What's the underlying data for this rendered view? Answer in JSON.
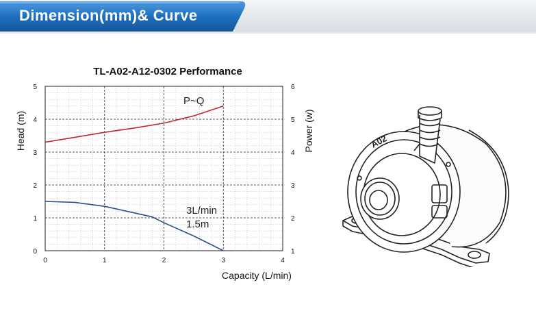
{
  "header": {
    "title": "Dimension(mm)& Curve"
  },
  "chart_data": {
    "type": "line",
    "title": "TL-A02-A12-0302 Performance",
    "xlabel": "Capacity (L/min)",
    "ylabel": "Head (m)",
    "y2label": "Power (w)",
    "xlim": [
      0,
      4
    ],
    "ylim": [
      0,
      5
    ],
    "y2lim": [
      1,
      6
    ],
    "xticks": [
      "0",
      "1",
      "2",
      "3",
      "4"
    ],
    "yticks": [
      "0",
      "1",
      "2",
      "3",
      "4",
      "5"
    ],
    "y2ticks": [
      "1",
      "2",
      "3",
      "4",
      "5",
      "6"
    ],
    "grid": true,
    "series": [
      {
        "name": "",
        "axis": "left",
        "color": "#2a4f8c",
        "x": [
          0,
          0.5,
          1.0,
          1.5,
          1.8,
          2.0,
          2.5,
          3.0
        ],
        "y": [
          1.5,
          1.47,
          1.35,
          1.15,
          1.03,
          0.85,
          0.45,
          0.0
        ]
      },
      {
        "name": "P~Q",
        "axis": "right",
        "color": "#c0282d",
        "x": [
          0,
          0.5,
          1.0,
          1.5,
          2.0,
          2.5,
          3.0
        ],
        "y": [
          4.3,
          4.45,
          4.6,
          4.73,
          4.88,
          5.1,
          5.4
        ]
      }
    ],
    "annotations": [
      "P~Q",
      "3L/min",
      "1.5m"
    ]
  },
  "colors": {
    "banner_accent": "#1f6fc0",
    "head_curve": "#2a4f8c",
    "power_curve": "#c0282d"
  },
  "illustration": {
    "label": "A02"
  }
}
